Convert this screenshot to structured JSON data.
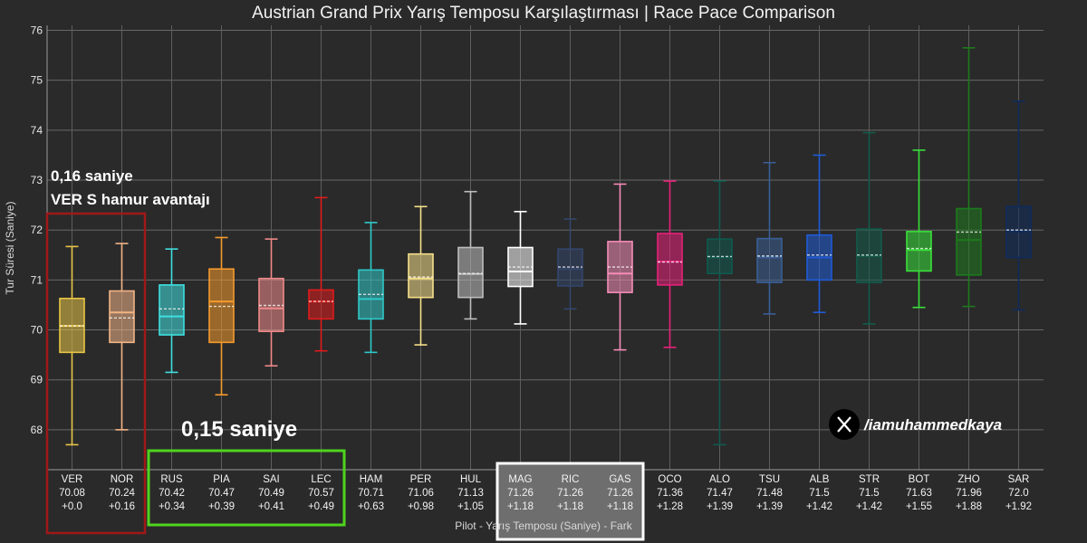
{
  "chart_data": {
    "type": "box",
    "title": "Austrian Grand Prix Yarış Temposu Karşılaştırması | Race Pace Comparison",
    "xlabel": "Pilot - Yarış Temposu (Saniye) - Fark",
    "ylabel": "Tur Süresi (Saniye)",
    "ylim": [
      67.2,
      76.1
    ],
    "yticks": [
      68,
      69,
      70,
      71,
      72,
      73,
      74,
      75,
      76
    ],
    "grid": true,
    "series": [
      {
        "driver": "VER",
        "pace": "70.08",
        "gap": "+0.0",
        "color": "#e8c547",
        "min": 67.7,
        "q1": 69.55,
        "median": 70.08,
        "mean": 70.08,
        "q3": 70.63,
        "max": 71.67
      },
      {
        "driver": "NOR",
        "pace": "70.24",
        "gap": "+0.16",
        "color": "#f2b486",
        "min": 68.0,
        "q1": 69.75,
        "median": 70.35,
        "mean": 70.24,
        "q3": 70.78,
        "max": 71.73
      },
      {
        "driver": "RUS",
        "pace": "70.42",
        "gap": "+0.34",
        "color": "#3fe0e0",
        "min": 69.15,
        "q1": 69.9,
        "median": 70.27,
        "mean": 70.42,
        "q3": 70.9,
        "max": 71.62
      },
      {
        "driver": "PIA",
        "pace": "70.47",
        "gap": "+0.39",
        "color": "#f59a2c",
        "min": 68.7,
        "q1": 69.75,
        "median": 70.57,
        "mean": 70.47,
        "q3": 71.22,
        "max": 71.85
      },
      {
        "driver": "SAI",
        "pace": "70.49",
        "gap": "+0.41",
        "color": "#f08a8a",
        "min": 69.28,
        "q1": 69.97,
        "median": 70.43,
        "mean": 70.49,
        "q3": 71.03,
        "max": 71.82
      },
      {
        "driver": "LEC",
        "pace": "70.57",
        "gap": "+0.49",
        "color": "#e01b1b",
        "min": 69.58,
        "q1": 70.22,
        "median": 70.57,
        "mean": 70.57,
        "q3": 70.8,
        "max": 72.65
      },
      {
        "driver": "HAM",
        "pace": "70.71",
        "gap": "+0.63",
        "color": "#2fc9c9",
        "min": 69.55,
        "q1": 70.22,
        "median": 70.62,
        "mean": 70.71,
        "q3": 71.2,
        "max": 72.15
      },
      {
        "driver": "PER",
        "pace": "71.06",
        "gap": "+0.98",
        "color": "#f5e08a",
        "min": 69.7,
        "q1": 70.65,
        "median": 71.03,
        "mean": 71.06,
        "q3": 71.52,
        "max": 72.47
      },
      {
        "driver": "HUL",
        "pace": "71.13",
        "gap": "+1.05",
        "color": "#bdbdbd",
        "min": 70.22,
        "q1": 70.65,
        "median": 71.12,
        "mean": 71.13,
        "q3": 71.65,
        "max": 72.77
      },
      {
        "driver": "MAG",
        "pace": "71.26",
        "gap": "+1.18",
        "color": "#ffffff",
        "min": 70.12,
        "q1": 70.87,
        "median": 71.17,
        "mean": 71.26,
        "q3": 71.65,
        "max": 72.37
      },
      {
        "driver": "RIC",
        "pace": "71.26",
        "gap": "+1.18",
        "color": "#33466b",
        "min": 70.42,
        "q1": 70.88,
        "median": 71.22,
        "mean": 71.26,
        "q3": 71.62,
        "max": 72.22
      },
      {
        "driver": "GAS",
        "pace": "71.26",
        "gap": "+1.18",
        "color": "#f58cb8",
        "min": 69.6,
        "q1": 70.75,
        "median": 71.13,
        "mean": 71.26,
        "q3": 71.77,
        "max": 72.92
      },
      {
        "driver": "OCO",
        "pace": "71.36",
        "gap": "+1.28",
        "color": "#e8217a",
        "min": 69.65,
        "q1": 70.9,
        "median": 71.37,
        "mean": 71.36,
        "q3": 71.93,
        "max": 72.98
      },
      {
        "driver": "ALO",
        "pace": "71.47",
        "gap": "+1.39",
        "color": "#0f5a4e",
        "min": 67.7,
        "q1": 71.13,
        "median": 71.45,
        "mean": 71.47,
        "q3": 71.82,
        "max": 72.98
      },
      {
        "driver": "TSU",
        "pace": "71.48",
        "gap": "+1.39",
        "color": "#3a5f96",
        "min": 70.32,
        "q1": 70.95,
        "median": 71.45,
        "mean": 71.48,
        "q3": 71.83,
        "max": 73.35
      },
      {
        "driver": "ALB",
        "pace": "71.5",
        "gap": "+1.42",
        "color": "#1f5bd6",
        "min": 70.35,
        "q1": 71.0,
        "median": 71.45,
        "mean": 71.5,
        "q3": 71.9,
        "max": 73.5
      },
      {
        "driver": "STR",
        "pace": "71.5",
        "gap": "+1.42",
        "color": "#125b4a",
        "min": 70.12,
        "q1": 70.95,
        "median": 71.48,
        "mean": 71.5,
        "q3": 72.02,
        "max": 73.95
      },
      {
        "driver": "BOT",
        "pace": "71.63",
        "gap": "+1.55",
        "color": "#39e03a",
        "min": 70.45,
        "q1": 71.18,
        "median": 71.6,
        "mean": 71.63,
        "q3": 71.97,
        "max": 73.6
      },
      {
        "driver": "ZHO",
        "pace": "71.96",
        "gap": "+1.88",
        "color": "#1d7a1d",
        "min": 70.47,
        "q1": 71.1,
        "median": 71.8,
        "mean": 71.96,
        "q3": 72.43,
        "max": 75.65
      },
      {
        "driver": "SAR",
        "pace": "72.0",
        "gap": "+1.92",
        "color": "#0f2b5c",
        "min": 70.4,
        "q1": 71.45,
        "median": 71.97,
        "mean": 72.0,
        "q3": 72.47,
        "max": 74.58
      }
    ]
  },
  "annotations": {
    "ver_advantage_line1": "0,16 saniye",
    "ver_advantage_line2": "VER S hamur avantajı",
    "group_gap": "0,15 saniye",
    "watermark": "/iamuhammedkaya",
    "watermark_icon": "x-logo-icon"
  },
  "highlight_colors": {
    "ver_nor_box": "#a01818",
    "green_group_box": "#4fd41e",
    "white_group_box": "#ffffff",
    "white_group_fill": "#6e6e6e"
  }
}
